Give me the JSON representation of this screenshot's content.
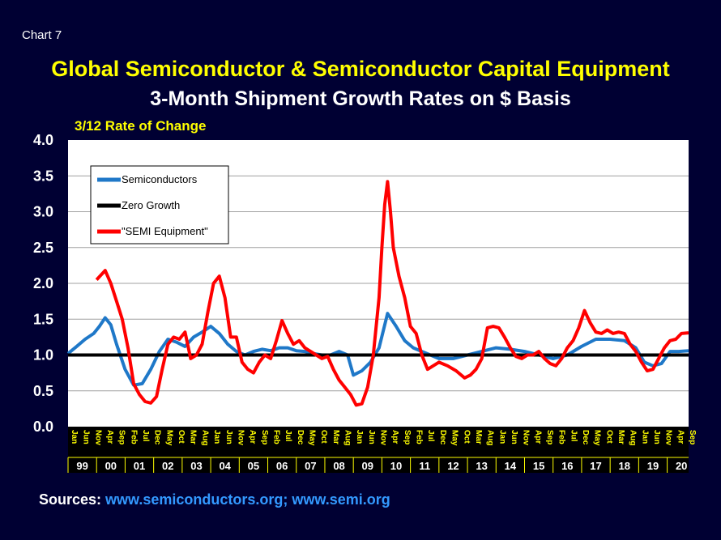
{
  "chart_number": "Chart 7",
  "title": "Global Semiconductor & Semiconductor Capital Equipment",
  "subtitle": "3-Month Shipment Growth Rates on $ Basis",
  "sources": {
    "label": "Sources:",
    "links": "www.semiconductors.org; www.semi.org"
  },
  "colors": {
    "background": "#000033",
    "title": "#ffff00",
    "semiconductors": "#1f78c8",
    "zero_growth": "#000000",
    "semi_equipment": "#ff0000",
    "link": "#3399ff"
  },
  "chart_data": {
    "type": "line",
    "ylabel": "3/12 Rate of Change",
    "ylim": [
      0,
      4.0
    ],
    "yticks": [
      "4.0",
      "3.5",
      "3.0",
      "2.5",
      "2.0",
      "1.5",
      "1.0",
      "0.5",
      "0.0"
    ],
    "grid": true,
    "legend_placement": "top-left",
    "x_range": [
      1999.0,
      2020.75
    ],
    "month_labels": [
      "Jan",
      "Jun",
      "Nov",
      "Apr",
      "Sep",
      "Feb",
      "Jul",
      "Dec",
      "May",
      "Oct",
      "Mar",
      "Aug",
      "Jan",
      "Jun",
      "Nov",
      "Apr",
      "Sep",
      "Feb",
      "Jul",
      "Dec",
      "May",
      "Oct",
      "Mar",
      "Aug",
      "Jan",
      "Jun",
      "Nov",
      "Apr",
      "Sep",
      "Feb",
      "Jul",
      "Dec",
      "May",
      "Oct",
      "Mar",
      "Aug",
      "Jan",
      "Jun",
      "Nov",
      "Apr",
      "Sep",
      "Feb",
      "Jul",
      "Dec",
      "May",
      "Oct",
      "Mar",
      "Aug",
      "Jan",
      "Jun",
      "Nov",
      "Apr",
      "Sep"
    ],
    "year_labels": [
      "99",
      "00",
      "01",
      "02",
      "03",
      "04",
      "05",
      "06",
      "07",
      "08",
      "09",
      "10",
      "11",
      "12",
      "13",
      "14",
      "15",
      "16",
      "17",
      "18",
      "19",
      "20"
    ],
    "series": [
      {
        "name": "Semiconductors",
        "x": [
          1999.0,
          1999.3,
          1999.6,
          1999.9,
          2000.1,
          2000.3,
          2000.5,
          2000.7,
          2001.0,
          2001.3,
          2001.6,
          2001.9,
          2002.2,
          2002.5,
          2002.8,
          2003.1,
          2003.4,
          2003.7,
          2004.0,
          2004.3,
          2004.6,
          2004.9,
          2005.2,
          2005.5,
          2005.8,
          2006.1,
          2006.4,
          2006.7,
          2007.0,
          2007.3,
          2007.6,
          2007.9,
          2008.2,
          2008.5,
          2008.8,
          2009.0,
          2009.3,
          2009.6,
          2009.9,
          2010.2,
          2010.5,
          2010.8,
          2011.1,
          2011.4,
          2011.7,
          2012.0,
          2012.5,
          2013.0,
          2013.5,
          2014.0,
          2014.5,
          2015.0,
          2015.5,
          2016.0,
          2016.5,
          2017.0,
          2017.5,
          2018.0,
          2018.5,
          2018.9,
          2019.2,
          2019.5,
          2019.8,
          2020.1,
          2020.4,
          2020.75
        ],
        "y": [
          1.02,
          1.12,
          1.22,
          1.3,
          1.4,
          1.52,
          1.42,
          1.15,
          0.8,
          0.58,
          0.6,
          0.8,
          1.05,
          1.22,
          1.18,
          1.12,
          1.25,
          1.32,
          1.4,
          1.3,
          1.15,
          1.05,
          1.0,
          1.05,
          1.08,
          1.06,
          1.1,
          1.1,
          1.06,
          1.05,
          1.02,
          1.0,
          1.0,
          1.05,
          1.0,
          0.72,
          0.78,
          0.9,
          1.1,
          1.58,
          1.4,
          1.2,
          1.1,
          1.05,
          1.0,
          0.95,
          0.95,
          1.0,
          1.05,
          1.1,
          1.08,
          1.05,
          1.0,
          0.95,
          1.0,
          1.12,
          1.22,
          1.22,
          1.2,
          1.1,
          0.9,
          0.85,
          0.88,
          1.05,
          1.05,
          1.06
        ]
      },
      {
        "name": "Zero Growth",
        "x": [
          1999.0,
          2020.75
        ],
        "y": [
          1.0,
          1.0
        ]
      },
      {
        "name": "\"SEMI Equipment\"",
        "x": [
          2000.0,
          2000.3,
          2000.5,
          2000.7,
          2000.9,
          2001.1,
          2001.3,
          2001.5,
          2001.7,
          2001.9,
          2002.1,
          2002.3,
          2002.5,
          2002.7,
          2002.9,
          2003.1,
          2003.3,
          2003.5,
          2003.7,
          2003.9,
          2004.1,
          2004.3,
          2004.5,
          2004.7,
          2004.9,
          2005.1,
          2005.3,
          2005.5,
          2005.7,
          2005.9,
          2006.1,
          2006.3,
          2006.5,
          2006.7,
          2006.9,
          2007.1,
          2007.3,
          2007.5,
          2007.7,
          2007.9,
          2008.1,
          2008.3,
          2008.5,
          2008.7,
          2008.9,
          2009.1,
          2009.3,
          2009.5,
          2009.7,
          2009.9,
          2010.0,
          2010.1,
          2010.2,
          2010.3,
          2010.4,
          2010.6,
          2010.8,
          2011.0,
          2011.2,
          2011.4,
          2011.6,
          2011.8,
          2012.0,
          2012.3,
          2012.6,
          2012.9,
          2013.1,
          2013.3,
          2013.5,
          2013.7,
          2013.9,
          2014.1,
          2014.3,
          2014.5,
          2014.7,
          2014.9,
          2015.1,
          2015.3,
          2015.5,
          2015.7,
          2015.9,
          2016.1,
          2016.3,
          2016.5,
          2016.7,
          2016.9,
          2017.1,
          2017.3,
          2017.5,
          2017.7,
          2017.9,
          2018.1,
          2018.3,
          2018.5,
          2018.7,
          2018.9,
          2019.1,
          2019.3,
          2019.5,
          2019.7,
          2019.9,
          2020.1,
          2020.3,
          2020.5,
          2020.75
        ],
        "y": [
          2.05,
          2.18,
          2.0,
          1.75,
          1.5,
          1.1,
          0.6,
          0.45,
          0.35,
          0.33,
          0.42,
          0.8,
          1.15,
          1.25,
          1.22,
          1.32,
          0.95,
          1.0,
          1.15,
          1.6,
          2.0,
          2.1,
          1.8,
          1.25,
          1.25,
          0.9,
          0.8,
          0.75,
          0.9,
          1.0,
          0.95,
          1.2,
          1.48,
          1.3,
          1.15,
          1.2,
          1.1,
          1.05,
          1.0,
          0.95,
          0.98,
          0.8,
          0.65,
          0.55,
          0.45,
          0.3,
          0.32,
          0.55,
          1.0,
          1.8,
          2.5,
          3.1,
          3.42,
          3.0,
          2.5,
          2.1,
          1.8,
          1.4,
          1.3,
          1.0,
          0.8,
          0.85,
          0.9,
          0.85,
          0.78,
          0.68,
          0.72,
          0.8,
          0.95,
          1.38,
          1.4,
          1.38,
          1.25,
          1.1,
          0.98,
          0.95,
          1.0,
          1.0,
          1.05,
          0.95,
          0.88,
          0.85,
          0.95,
          1.1,
          1.2,
          1.38,
          1.62,
          1.45,
          1.32,
          1.3,
          1.35,
          1.3,
          1.32,
          1.3,
          1.15,
          1.05,
          0.9,
          0.78,
          0.8,
          0.95,
          1.1,
          1.2,
          1.22,
          1.3,
          1.31
        ]
      }
    ]
  }
}
